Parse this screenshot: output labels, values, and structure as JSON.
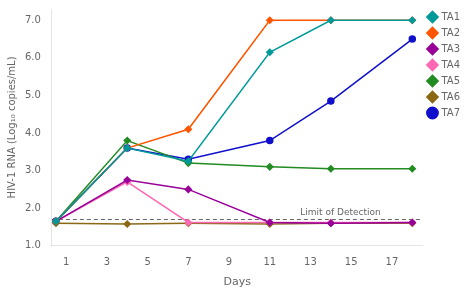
{
  "chart_data": {
    "type": "line",
    "xlabel": "Days",
    "ylabel": "HIV-1 RNA (Log₁₀ copies/mL)",
    "xlim": [
      0.3,
      18.5
    ],
    "ylim": [
      1.0,
      7.3
    ],
    "xticks": [
      1,
      3,
      5,
      7,
      9,
      11,
      13,
      15,
      17
    ],
    "yticks": [
      {
        "value": 1.0,
        "label": "1.0"
      },
      {
        "value": 2.0,
        "label": "2.0"
      },
      {
        "value": 3.0,
        "label": "3.0"
      },
      {
        "value": 4.0,
        "label": "4.0"
      },
      {
        "value": 5.0,
        "label": "5.0"
      },
      {
        "value": 6.0,
        "label": "6.0"
      },
      {
        "value": 7.0,
        "label": "7.0"
      }
    ],
    "grid": false,
    "legend": "right",
    "x": [
      0.5,
      4,
      7,
      11,
      14,
      18
    ],
    "series": [
      {
        "name": "TA1",
        "color": "#009999",
        "marker": "diamond",
        "values": [
          1.65,
          3.6,
          3.25,
          6.15,
          7.0,
          7.0
        ]
      },
      {
        "name": "TA2",
        "color": "#FF5500",
        "marker": "diamond",
        "values": [
          1.65,
          3.6,
          4.1,
          7.0,
          7.0,
          7.0
        ]
      },
      {
        "name": "TA3",
        "color": "#990099",
        "marker": "diamond",
        "values": [
          1.65,
          2.75,
          2.5,
          1.62,
          1.6,
          1.62
        ]
      },
      {
        "name": "TA4",
        "color": "#FF69B4",
        "marker": "diamond",
        "values": [
          1.65,
          2.7,
          1.62,
          1.62,
          1.62,
          1.62
        ]
      },
      {
        "name": "TA5",
        "color": "#228B22",
        "marker": "diamond",
        "values": [
          1.65,
          3.8,
          3.2,
          3.1,
          3.05,
          3.05
        ]
      },
      {
        "name": "TA6",
        "color": "#8B6914",
        "marker": "diamond",
        "values": [
          1.6,
          1.58,
          1.6,
          1.58,
          1.6,
          1.6
        ]
      },
      {
        "name": "TA7",
        "color": "#1010CC",
        "marker": "circle",
        "values": [
          1.65,
          3.6,
          3.3,
          3.8,
          4.85,
          6.5
        ]
      }
    ],
    "hlines": [
      {
        "y": 1.7,
        "color": "#666666",
        "line_style": "dashed"
      }
    ],
    "annotations": [
      {
        "text": "Limit of Detection",
        "x": 12.5,
        "y": 1.75,
        "color": "#666666"
      }
    ]
  }
}
